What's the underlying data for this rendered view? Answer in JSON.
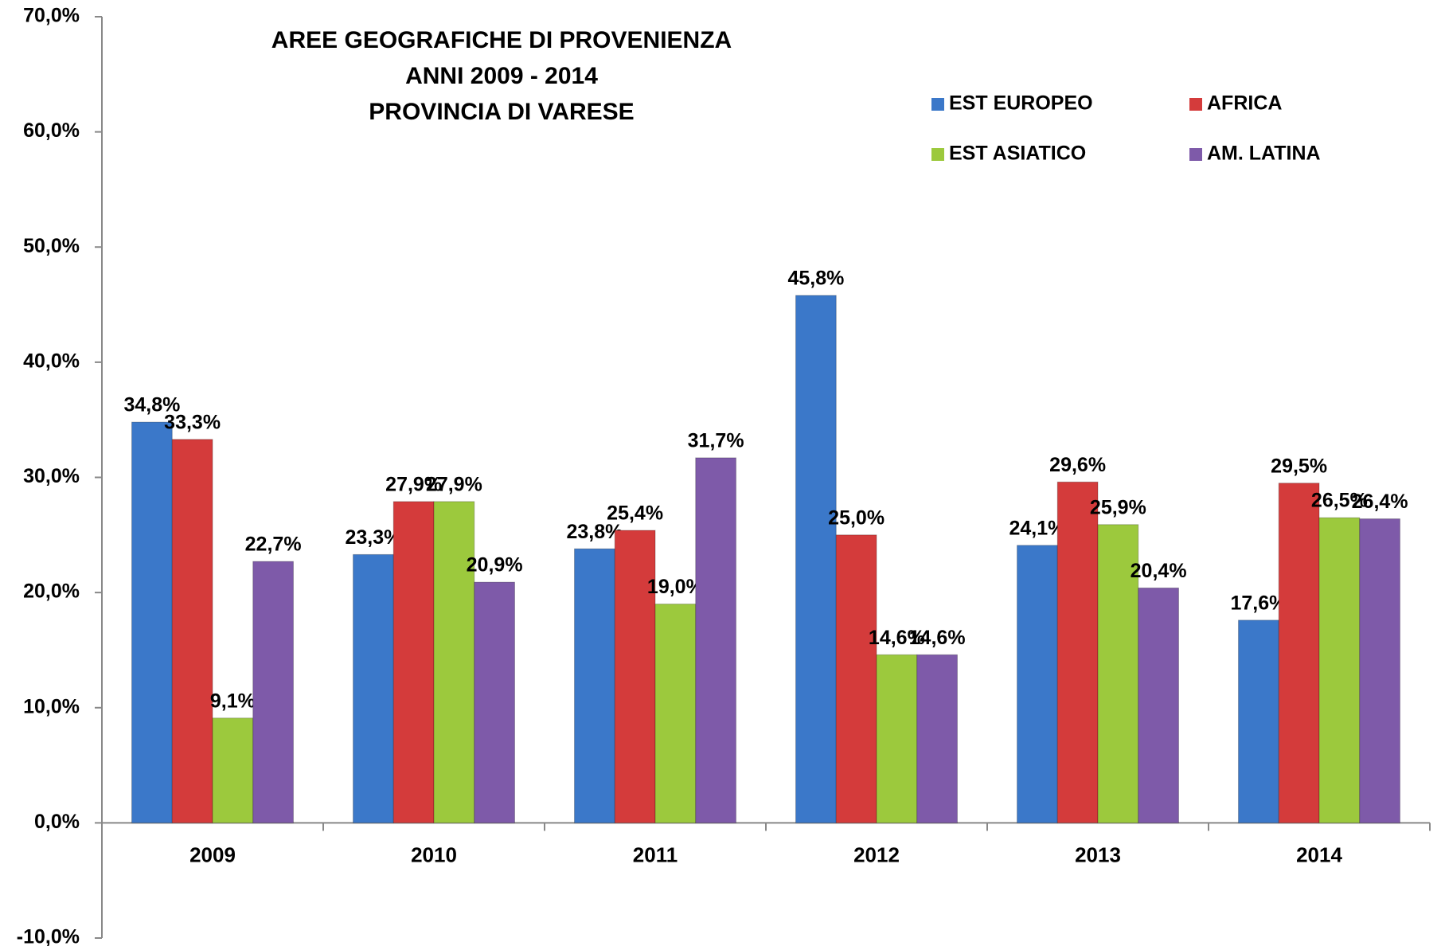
{
  "chart_data": {
    "type": "bar",
    "title": [
      "AREE GEOGRAFICHE DI PROVENIENZA",
      "ANNI 2009 - 2014",
      "PROVINCIA DI VARESE"
    ],
    "categories": [
      "2009",
      "2010",
      "2011",
      "2012",
      "2013",
      "2014"
    ],
    "series": [
      {
        "name": "EST EUROPEO",
        "color": "#3b78c9",
        "values": [
          34.8,
          23.3,
          23.8,
          45.8,
          24.1,
          17.6
        ],
        "value_labels": [
          "34,8%",
          "23,3%",
          "23,8%",
          "45,8%",
          "24,1%",
          "17,6%"
        ]
      },
      {
        "name": "AFRICA",
        "color": "#d43b3b",
        "values": [
          33.3,
          27.9,
          25.4,
          25.0,
          29.6,
          29.5
        ],
        "value_labels": [
          "33,3%",
          "27,9%",
          "25,4%",
          "25,0%",
          "29,6%",
          "29,5%"
        ]
      },
      {
        "name": "EST ASIATICO",
        "color": "#9cc93d",
        "values": [
          9.1,
          27.9,
          19.0,
          14.6,
          25.9,
          26.5
        ],
        "value_labels": [
          "9,1%",
          "27,9%",
          "19,0%",
          "14,6%",
          "25,9%",
          "26,5%"
        ]
      },
      {
        "name": "AM. LATINA",
        "color": "#7e5aa9",
        "values": [
          22.7,
          20.9,
          31.7,
          14.6,
          20.4,
          26.4
        ],
        "value_labels": [
          "22,7%",
          "20,9%",
          "31,7%",
          "14,6%",
          "20,4%",
          "26,4%"
        ]
      }
    ],
    "ylim": [
      -10,
      70
    ],
    "yticks": [
      {
        "value": -10,
        "label": "-10,0%"
      },
      {
        "value": 0,
        "label": "0,0%"
      },
      {
        "value": 10,
        "label": "10,0%"
      },
      {
        "value": 20,
        "label": "20,0%"
      },
      {
        "value": 30,
        "label": "30,0%"
      },
      {
        "value": 40,
        "label": "40,0%"
      },
      {
        "value": 50,
        "label": "50,0%"
      },
      {
        "value": 60,
        "label": "60,0%"
      },
      {
        "value": 70,
        "label": "70,0%"
      }
    ],
    "grid": false,
    "legend": "top-right"
  }
}
